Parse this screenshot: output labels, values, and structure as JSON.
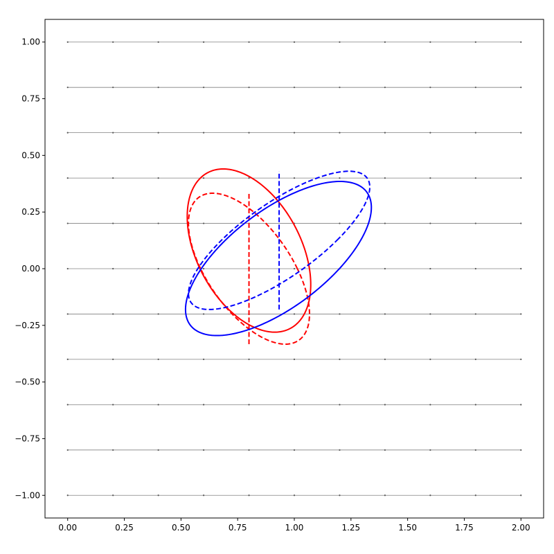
{
  "chart_data": {
    "type": "line",
    "title": "",
    "xlabel": "",
    "ylabel": "",
    "xlim": [
      -0.1,
      2.1
    ],
    "ylim": [
      -1.1,
      1.1
    ],
    "grid": false,
    "legend": "none",
    "x_ticks": [
      0.0,
      0.25,
      0.5,
      0.75,
      1.0,
      1.25,
      1.5,
      1.75,
      2.0
    ],
    "x_tick_labels": [
      "0.00",
      "0.25",
      "0.50",
      "0.75",
      "1.00",
      "1.25",
      "1.50",
      "1.75",
      "2.00"
    ],
    "y_ticks": [
      -1.0,
      -0.75,
      -0.5,
      -0.25,
      0.0,
      0.25,
      0.5,
      0.75,
      1.0
    ],
    "y_tick_labels": [
      "−1.00",
      "−0.75",
      "−0.50",
      "−0.25",
      "0.00",
      "0.25",
      "0.50",
      "0.75",
      "1.00"
    ],
    "reference_lines": {
      "color": "#808080",
      "x_start": 0.0,
      "x_end": 2.0,
      "y_values": [
        1.0,
        0.8,
        0.6,
        0.4,
        0.2,
        0.0,
        -0.2,
        -0.4,
        -0.6,
        -0.8,
        -1.0
      ],
      "marker_x": [
        0.0,
        0.2,
        0.4,
        0.6,
        0.8,
        1.0,
        1.2,
        1.4,
        1.6,
        1.8,
        2.0
      ]
    },
    "series": [
      {
        "color": "#ff0000",
        "style": "solid",
        "shape": "ellipse",
        "center": [
          0.8,
          0.08
        ],
        "x_extent": [
          0.527,
          1.072
        ],
        "y_extent": [
          -0.28,
          0.44
        ],
        "top_point_x": 0.56,
        "bottom_point_x": 0.86
      },
      {
        "color": "#ff0000",
        "style": "dashed",
        "shape": "ellipse",
        "center": [
          0.8,
          0.0
        ],
        "x_extent": [
          0.533,
          1.067
        ],
        "y_extent": [
          -0.333,
          0.333
        ],
        "top_point_x": 0.6,
        "bottom_point_x": 1.0
      },
      {
        "color": "#ff0000",
        "style": "dashed",
        "shape": "vline",
        "x": 0.8,
        "y_range": [
          -0.333,
          0.333
        ]
      },
      {
        "color": "#0000ff",
        "style": "solid",
        "shape": "ellipse",
        "center": [
          0.93,
          0.045
        ],
        "x_extent": [
          0.52,
          1.34
        ],
        "y_extent": [
          -0.295,
          0.385
        ],
        "top_point_x": 1.06,
        "bottom_point_x": 0.61
      },
      {
        "color": "#0000ff",
        "style": "dashed",
        "shape": "ellipse",
        "center": [
          0.933,
          0.125
        ],
        "x_extent": [
          0.533,
          1.333
        ],
        "y_extent": [
          -0.18,
          0.43
        ],
        "top_point_x": 1.17,
        "bottom_point_x": 0.7
      },
      {
        "color": "#0000ff",
        "style": "dashed",
        "shape": "vline",
        "x": 0.933,
        "y_range": [
          -0.18,
          0.43
        ]
      }
    ]
  }
}
